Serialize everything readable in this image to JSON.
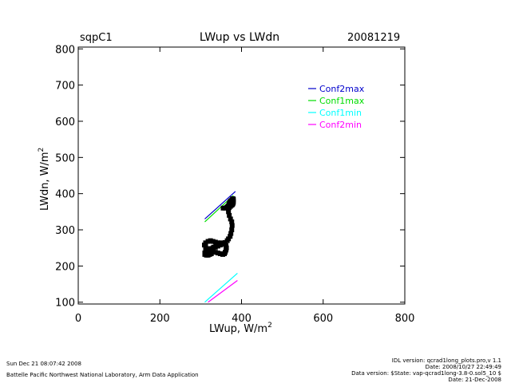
{
  "header": {
    "site": "sqpC1",
    "date": "20081219"
  },
  "footer": {
    "timestamp": "Sun Dec 21 08:07:42 2008",
    "lab": "Battelle Pacific Northwest National Laboratory, Arm Data Application",
    "idl_version": "IDL version: qcrad1long_plots.pro,v 1.1",
    "code_date": "Date: 2008/10/27 22:49:49",
    "data_version": "Data version: $State: vap-qcrad1long-3.8-0.sol5_10 $",
    "data_date": "Date: 21-Dec-2008"
  },
  "chart_data": {
    "type": "scatter",
    "title": "LWup vs LWdn",
    "xlabel": "LWup, W/m",
    "ylabel": "LWdn, W/m",
    "unit_exponent": "2",
    "xlim": [
      0,
      800
    ],
    "ylim": [
      95,
      805
    ],
    "xticks": [
      0,
      200,
      400,
      600,
      800
    ],
    "yticks": [
      100,
      200,
      300,
      400,
      500,
      600,
      700,
      800
    ],
    "grid": false,
    "legend_position": "top-right",
    "series": [
      {
        "name": "Conf2max",
        "color": "#0000cc",
        "kind": "line",
        "x": [
          310,
          385
        ],
        "y": [
          330,
          406
        ]
      },
      {
        "name": "Conf1max",
        "color": "#00dd00",
        "kind": "line",
        "x": [
          310,
          380
        ],
        "y": [
          322,
          395
        ]
      },
      {
        "name": "Conf1min",
        "color": "#00ffff",
        "kind": "line",
        "x": [
          310,
          390
        ],
        "y": [
          100,
          180
        ]
      },
      {
        "name": "Conf2min",
        "color": "#ff00ff",
        "kind": "line",
        "x": [
          318,
          390
        ],
        "y": [
          100,
          160
        ]
      },
      {
        "name": "",
        "color": "#000000",
        "kind": "points",
        "x": [
          312,
          318,
          324,
          330,
          336,
          342,
          348,
          355,
          360,
          365,
          368,
          372,
          374,
          376,
          377,
          376,
          373,
          370,
          368,
          368,
          370,
          373,
          376,
          378,
          379,
          380,
          380,
          380,
          379,
          378,
          377,
          375,
          373,
          372,
          371,
          370,
          369,
          368,
          366,
          364,
          360,
          355,
          348,
          342,
          336,
          330,
          324,
          318,
          312,
          309,
          312,
          318,
          324,
          330,
          336,
          342,
          348,
          354,
          358,
          360,
          362,
          363,
          362,
          360,
          356,
          350,
          344,
          338,
          332,
          326,
          320,
          314,
          310,
          310,
          314,
          318,
          322,
          326
        ],
        "y": [
          242,
          245,
          248,
          250,
          252,
          255,
          258,
          262,
          265,
          270,
          275,
          282,
          290,
          300,
          312,
          322,
          330,
          340,
          350,
          358,
          362,
          365,
          368,
          370,
          373,
          376,
          380,
          384,
          386,
          385,
          383,
          381,
          379,
          377,
          375,
          372,
          369,
          366,
          364,
          362,
          360,
          360,
          262,
          264,
          266,
          268,
          270,
          268,
          264,
          258,
          252,
          248,
          244,
          240,
          238,
          236,
          234,
          232,
          234,
          238,
          244,
          250,
          256,
          260,
          262,
          264,
          262,
          258,
          252,
          248,
          244,
          240,
          236,
          232,
          230,
          230,
          232,
          234
        ]
      }
    ]
  }
}
